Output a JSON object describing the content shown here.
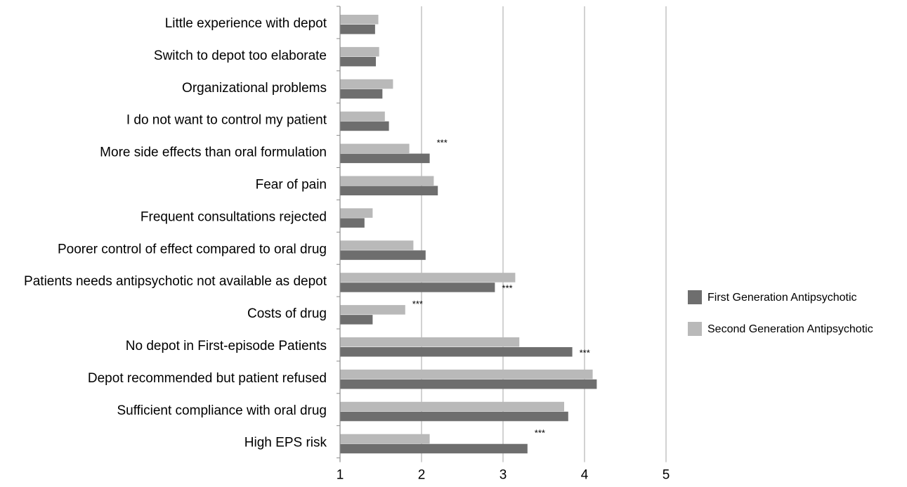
{
  "chart_data": {
    "type": "bar",
    "orientation": "horizontal",
    "categories": [
      "Little experience with depot",
      "Switch to depot too elaborate",
      "Organizational problems",
      "I do not want to control my patient",
      "More side effects than oral formulation",
      "Fear of pain",
      "Frequent consultations rejected",
      "Poorer control of effect compared to oral drug",
      "Patients needs antipsychotic not available as depot",
      "Costs of drug",
      "No depot in First-episode Patients",
      "Depot recommended but patient refused",
      "Sufficient compliance with oral drug",
      "High EPS risk"
    ],
    "series": [
      {
        "name": "First  Generation Antipsychotic",
        "color": "#6e6e6e",
        "values": [
          1.43,
          1.44,
          1.52,
          1.6,
          2.1,
          2.2,
          1.3,
          2.05,
          2.9,
          1.4,
          3.85,
          4.15,
          3.8,
          3.3
        ]
      },
      {
        "name": "Second Generation Antipsychotic",
        "color": "#b9b9b9",
        "values": [
          1.47,
          1.48,
          1.65,
          1.55,
          1.85,
          2.15,
          1.4,
          1.9,
          3.15,
          1.8,
          3.2,
          4.1,
          3.75,
          2.1
        ]
      }
    ],
    "significance": [
      {
        "category": "More side effects than oral formulation",
        "label": "***",
        "anchor_value": 2.1,
        "offset_row": "second"
      },
      {
        "category": "Patients needs antipsychotic not available as depot",
        "label": "***",
        "anchor_value": 2.9,
        "offset_row": "first"
      },
      {
        "category": "Costs of drug",
        "label": "***",
        "anchor_value": 1.8,
        "offset_row": "second"
      },
      {
        "category": "No depot in First-episode Patients",
        "label": "***",
        "anchor_value": 3.85,
        "offset_row": "first"
      },
      {
        "category": "High EPS risk",
        "label": "***",
        "anchor_value": 3.3,
        "offset_row": "second"
      }
    ],
    "xlim": [
      1,
      5
    ],
    "xticks": [
      1,
      2,
      3,
      4,
      5
    ],
    "grid": true,
    "legend_position": "right"
  }
}
